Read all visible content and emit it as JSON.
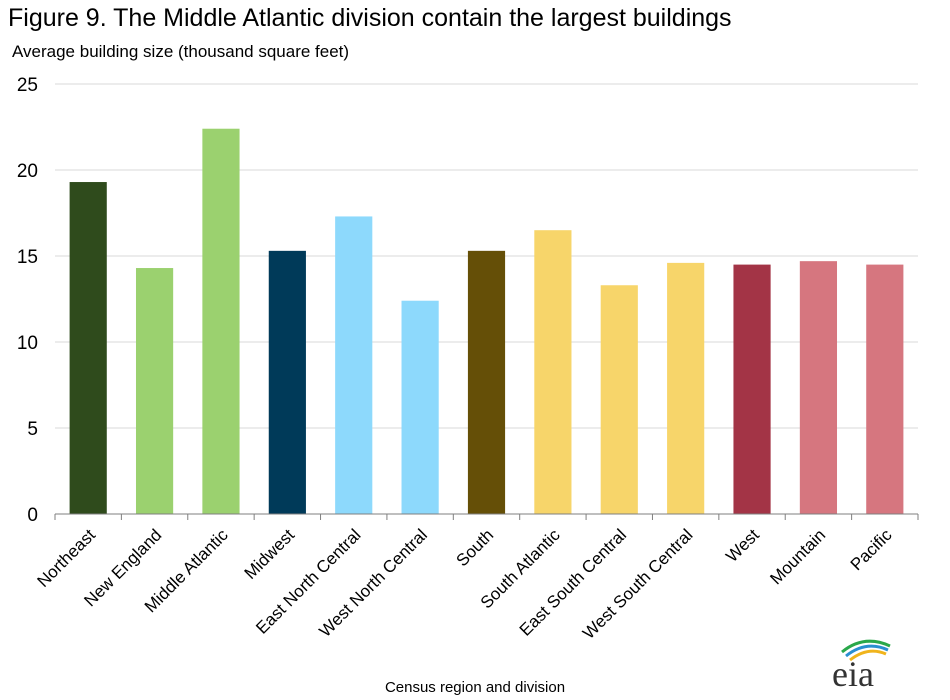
{
  "page": {
    "title": "Figure 9.  The Middle Atlantic division contain the largest buildings",
    "logo_text": "eia"
  },
  "chart_data": {
    "type": "bar",
    "title": "Figure 9.  The Middle Atlantic division contain the largest buildings",
    "ylabel": "Average building size (thousand square feet)",
    "xlabel": "Census region and division",
    "ylim": [
      0,
      25
    ],
    "yticks": [
      0,
      5,
      10,
      15,
      20,
      25
    ],
    "grid": true,
    "categories": [
      "Northeast",
      "New England",
      "Middle Atlantic",
      "Midwest",
      "East North Central",
      "West North Central",
      "South",
      "South Atlantic",
      "East South Central",
      "West South Central",
      "West",
      "Mountain",
      "Pacific"
    ],
    "values": [
      19.3,
      14.3,
      22.4,
      15.3,
      17.3,
      12.4,
      15.3,
      16.5,
      13.3,
      14.6,
      14.5,
      14.7,
      14.5
    ],
    "colors": [
      "#2f4b1c",
      "#9bd16f",
      "#9bd16f",
      "#003a59",
      "#8dd9fc",
      "#8dd9fc",
      "#654f07",
      "#f7d56a",
      "#f7d56a",
      "#f7d56a",
      "#a33446",
      "#d6767f",
      "#d6767f"
    ]
  }
}
